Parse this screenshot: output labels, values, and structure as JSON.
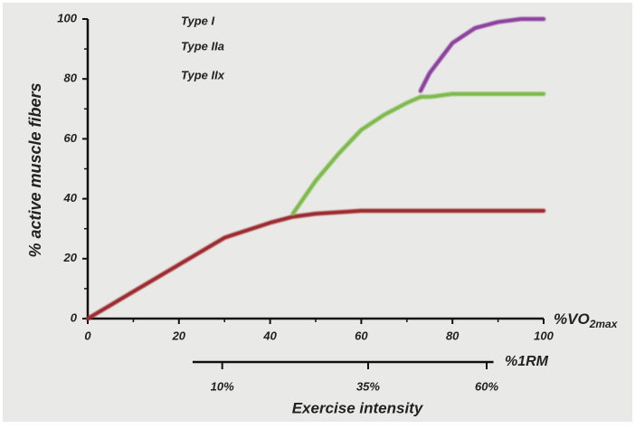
{
  "chart_data": {
    "type": "line",
    "y_label": "% active muscle fibers",
    "x_label_main": "%VO",
    "x_label_subscript": "2max",
    "x": [
      0,
      10,
      20,
      30,
      40,
      45,
      50,
      55,
      60,
      65,
      70,
      73,
      75,
      80,
      85,
      90,
      95,
      100
    ],
    "series": [
      {
        "name": "Type I",
        "color": "#9b2a2e",
        "values": [
          0,
          9,
          18,
          27,
          32,
          34,
          35,
          35.5,
          36,
          36,
          36,
          36,
          36,
          36,
          36,
          36,
          36,
          36
        ]
      },
      {
        "name": "Type IIa",
        "color": "#7dba4c",
        "values": [
          null,
          null,
          null,
          null,
          null,
          35,
          46,
          55,
          63,
          68,
          72,
          74,
          74,
          75,
          75,
          75,
          75,
          75
        ]
      },
      {
        "name": "Type IIx",
        "color": "#8b3f9e",
        "values": [
          null,
          null,
          null,
          null,
          null,
          null,
          null,
          null,
          null,
          null,
          null,
          76,
          82,
          92,
          97,
          99,
          100,
          100
        ]
      }
    ],
    "xlim": [
      0,
      100
    ],
    "ylim": [
      0,
      100
    ],
    "xticks": [
      0,
      20,
      40,
      60,
      80,
      100
    ],
    "yticks": [
      0,
      20,
      40,
      60,
      80,
      100
    ],
    "xminor_ticks": [
      10,
      30,
      50,
      70,
      90
    ],
    "yminor_ticks": [
      10,
      30,
      50,
      70,
      90
    ],
    "rm_axis": {
      "label": "%1RM",
      "xlim": [
        23,
        89
      ],
      "ticks": [
        {
          "value": 10,
          "label": "10%",
          "x": 29.5
        },
        {
          "value": 35,
          "label": "35%",
          "x": 61.5
        },
        {
          "value": 60,
          "label": "60%",
          "x": 87.5
        }
      ]
    },
    "title": "Exercise intensity",
    "legend": "upper left"
  }
}
